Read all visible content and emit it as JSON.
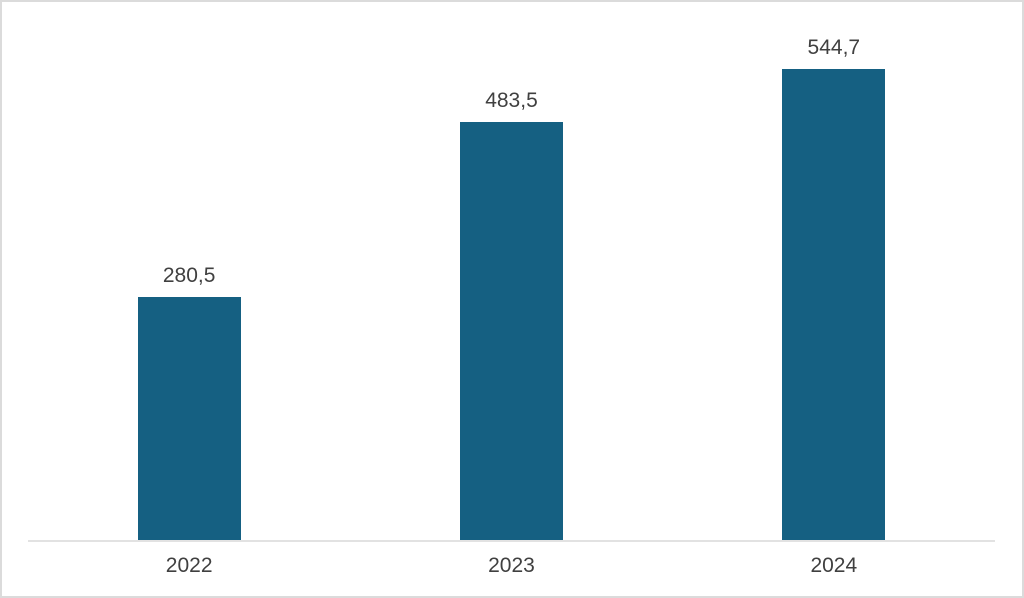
{
  "chart_data": {
    "type": "bar",
    "title": "",
    "xlabel": "",
    "ylabel": "",
    "categories": [
      "2022",
      "2023",
      "2024"
    ],
    "values": [
      280.5,
      483.5,
      544.7
    ],
    "value_labels": [
      "280,5",
      "483,5",
      "544,7"
    ],
    "ylim": [
      0,
      600
    ],
    "grid": false,
    "legend": false,
    "bar_color": "#156082",
    "label_color": "#404040",
    "axis_line_color": "#e2e2e2",
    "frame_border_color": "#dbdbdb",
    "background": "#ffffff"
  }
}
